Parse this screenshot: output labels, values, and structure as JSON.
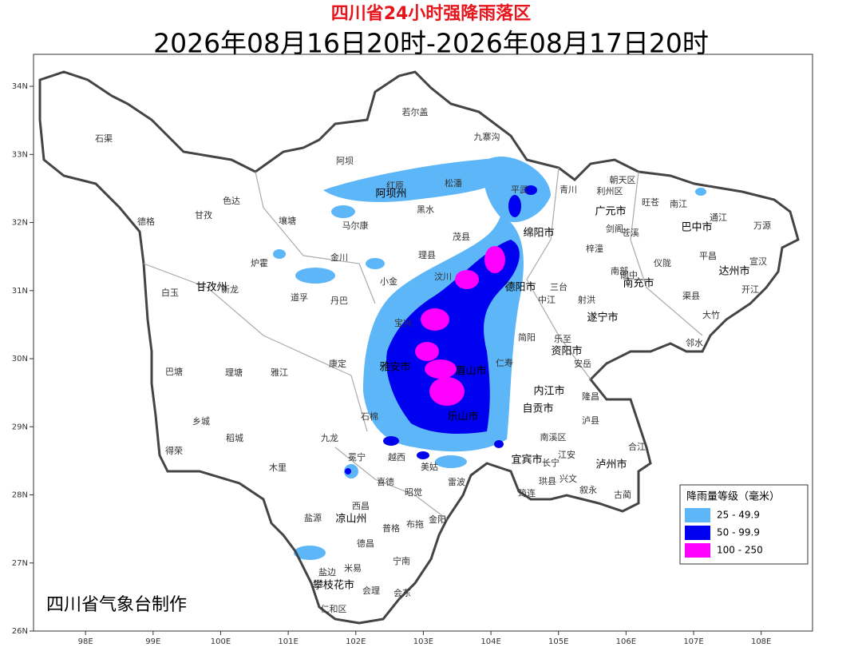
{
  "header": {
    "title": "四川省24小时强降雨落区",
    "subtitle": "2026年08月16日20时-2026年08月17日20时"
  },
  "map": {
    "lat_ticks": [
      {
        "value": 34,
        "label": "34N"
      },
      {
        "value": 33,
        "label": "33N"
      },
      {
        "value": 32,
        "label": "32N"
      },
      {
        "value": 31,
        "label": "31N"
      },
      {
        "value": 30,
        "label": "30N"
      },
      {
        "value": 29,
        "label": "29N"
      },
      {
        "value": 28,
        "label": "28N"
      },
      {
        "value": 27,
        "label": "27N"
      },
      {
        "value": 26,
        "label": "26N"
      }
    ],
    "lon_ticks": [
      {
        "value": 98,
        "label": "98E"
      },
      {
        "value": 99,
        "label": "99E"
      },
      {
        "value": 100,
        "label": "100E"
      },
      {
        "value": 101,
        "label": "101E"
      },
      {
        "value": 102,
        "label": "102E"
      },
      {
        "value": 103,
        "label": "103E"
      },
      {
        "value": 104,
        "label": "104E"
      },
      {
        "value": 105,
        "label": "105E"
      },
      {
        "value": 106,
        "label": "106E"
      },
      {
        "value": 107,
        "label": "107E"
      },
      {
        "value": 108,
        "label": "108E"
      }
    ],
    "places": [
      "若尔盖",
      "九寨沟",
      "石渠",
      "阿坝",
      "红原",
      "松潘",
      "平武",
      "青川",
      "朝天区",
      "利州区",
      "旺苍",
      "南江",
      "阿坝州",
      "色达",
      "德格",
      "甘孜",
      "壤塘",
      "黑水",
      "广元市",
      "通江",
      "巴中市",
      "万源",
      "马尔康",
      "茂县",
      "绵阳市",
      "剑阁",
      "苍溪",
      "金川",
      "理县",
      "梓潼",
      "平昌",
      "炉霍",
      "宣汉",
      "汶川",
      "小金",
      "阆中",
      "仪陇",
      "达州市",
      "白玉",
      "甘孜州",
      "新龙",
      "道孚",
      "丹巴",
      "南部",
      "南充市",
      "三台",
      "中江",
      "射洪",
      "德阳市",
      "渠县",
      "开江",
      "大竹",
      "遂宁市",
      "宝兴",
      "邻水",
      "巴塘",
      "理塘",
      "雅江",
      "康定",
      "资阳市",
      "安岳",
      "乐至",
      "简阳",
      "雅安市",
      "眉山市",
      "仁寿",
      "内江市",
      "自贡市",
      "隆昌",
      "乐山市",
      "泸州市",
      "泸县",
      "乡城",
      "稻城",
      "九龙",
      "石棉",
      "得荣",
      "冕宁",
      "越西",
      "美姑",
      "宜宾市",
      "南溪区",
      "江安",
      "长宁",
      "合江",
      "古蔺",
      "叙永",
      "兴文",
      "珙县",
      "筠连",
      "木里",
      "喜德",
      "昭觉",
      "雷波",
      "西昌",
      "凉山州",
      "布拖",
      "普格",
      "金阳",
      "盐源",
      "德昌",
      "宁南",
      "米易",
      "盐边",
      "攀枝花市",
      "会理",
      "会东",
      "仁和区"
    ],
    "footer": "四川省气象台制作"
  },
  "legend": {
    "title": "降雨量等级（毫米）",
    "items": [
      {
        "label": "25 - 49.9",
        "color": "#5cb6f7"
      },
      {
        "label": "50 - 99.9",
        "color": "#0000f0"
      },
      {
        "label": "100 - 250",
        "color": "#ff00ff"
      }
    ]
  }
}
